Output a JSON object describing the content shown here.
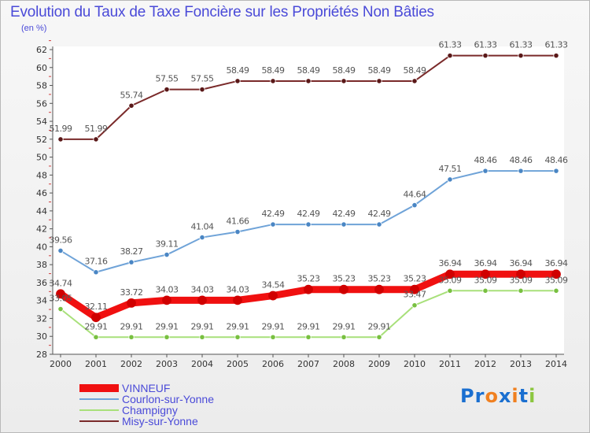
{
  "chart_data": {
    "type": "line",
    "title": "Evolution du Taux de Taxe Foncière sur les Propriétés Non Bâties",
    "subtitle": "(en %)",
    "x": [
      "2000",
      "2001",
      "2002",
      "2003",
      "2004",
      "2005",
      "2006",
      "2007",
      "2008",
      "2009",
      "2010",
      "2011",
      "2012",
      "2013",
      "2014"
    ],
    "ylim": [
      28,
      62
    ],
    "yticks": [
      "28",
      "30",
      "32",
      "34",
      "36",
      "38",
      "40",
      "42",
      "44",
      "46",
      "48",
      "50",
      "52",
      "54",
      "56",
      "58",
      "60",
      "62"
    ],
    "grid": false,
    "legend_position": "bottom-left",
    "series": [
      {
        "name": "Misy-sur-Yonne",
        "color": "#7a2a2a",
        "marker": "#5a1818",
        "values": [
          51.99,
          51.99,
          55.74,
          57.55,
          57.55,
          58.49,
          58.49,
          58.49,
          58.49,
          58.49,
          58.49,
          61.33,
          61.33,
          61.33,
          61.33
        ],
        "labels": [
          "51.99",
          "51.99",
          "55.74",
          "57.55",
          "57.55",
          "58.49",
          "58.49",
          "58.49",
          "58.49",
          "58.49",
          "58.49",
          "61.33",
          "61.33",
          "61.33",
          "61.33"
        ]
      },
      {
        "name": "Courlon-sur-Yonne",
        "color": "#6fa3d8",
        "marker": "#4a86c4",
        "values": [
          39.56,
          37.16,
          38.27,
          39.11,
          41.04,
          41.66,
          42.49,
          42.49,
          42.49,
          42.49,
          44.64,
          47.51,
          48.46,
          48.46,
          48.46
        ],
        "labels": [
          "39.56",
          "37.16",
          "38.27",
          "39.11",
          "41.04",
          "41.66",
          "42.49",
          "42.49",
          "42.49",
          "42.49",
          "44.64",
          "47.51",
          "48.46",
          "48.46",
          "48.46"
        ]
      },
      {
        "name": "Champigny",
        "color": "#a8e07a",
        "marker": "#78c040",
        "values": [
          33.05,
          29.91,
          29.91,
          29.91,
          29.91,
          29.91,
          29.91,
          29.91,
          29.91,
          29.91,
          33.47,
          35.09,
          35.09,
          35.09,
          35.09
        ],
        "labels": [
          "33.05",
          "29.91",
          "29.91",
          "29.91",
          "29.91",
          "29.91",
          "29.91",
          "29.91",
          "29.91",
          "29.91",
          "33.47",
          "35.09",
          "35.09",
          "35.09",
          "35.09"
        ]
      },
      {
        "name": "VINNEUF",
        "color": "#f01010",
        "marker": "#d00000",
        "thick": true,
        "values": [
          34.74,
          32.11,
          33.72,
          34.03,
          34.03,
          34.03,
          34.54,
          35.23,
          35.23,
          35.23,
          35.23,
          36.94,
          36.94,
          36.94,
          36.94
        ],
        "labels": [
          "34.74",
          "32.11",
          "33.72",
          "34.03",
          "34.03",
          "34.03",
          "34.54",
          "35.23",
          "35.23",
          "35.23",
          "35.23",
          "36.94",
          "36.94",
          "36.94",
          "36.94"
        ]
      }
    ]
  },
  "legend": [
    {
      "label": "VINNEUF",
      "color": "#f01010",
      "thick": true
    },
    {
      "label": "Courlon-sur-Yonne",
      "color": "#6fa3d8"
    },
    {
      "label": "Champigny",
      "color": "#a8e07a"
    },
    {
      "label": "Misy-sur-Yonne",
      "color": "#7a2a2a"
    }
  ],
  "logo": {
    "text": "Proxiti",
    "letters": [
      {
        "ch": "P",
        "color": "#1a6fd0"
      },
      {
        "ch": "r",
        "color": "#1a6fd0"
      },
      {
        "ch": "o",
        "color": "#f08020"
      },
      {
        "ch": "x",
        "color": "#1a6fd0"
      },
      {
        "ch": "i",
        "color": "#f08020"
      },
      {
        "ch": "t",
        "color": "#1a6fd0"
      },
      {
        "ch": "i",
        "color": "#8cc63f"
      }
    ]
  }
}
